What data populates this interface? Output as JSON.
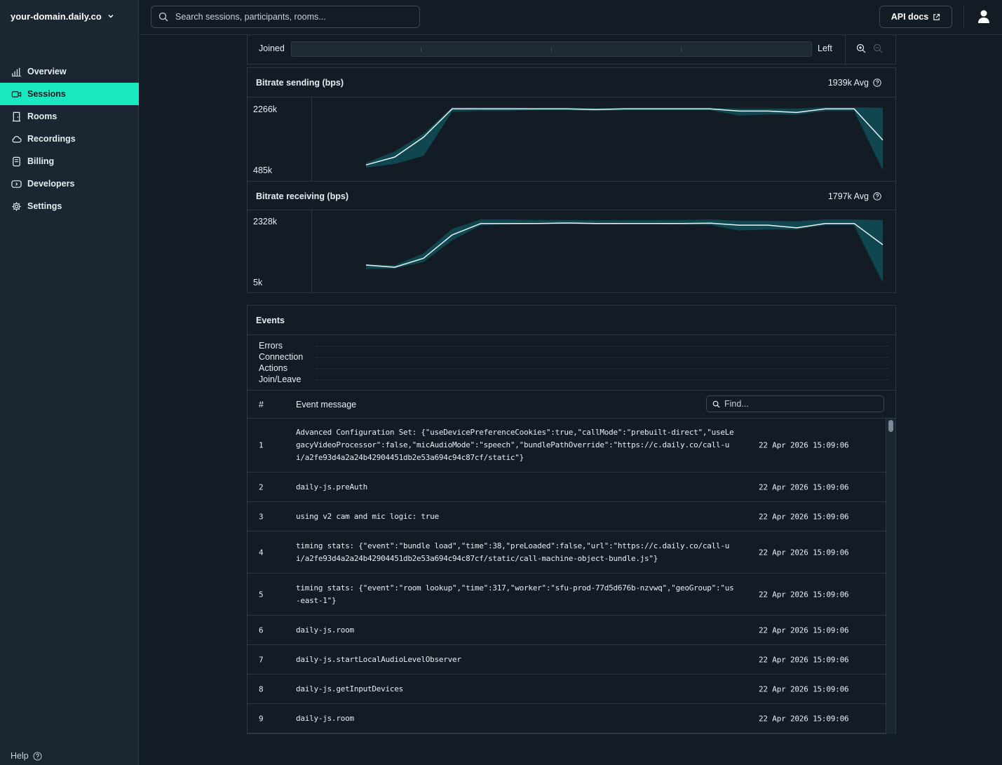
{
  "sidebar": {
    "domain": "your-domain.daily.co",
    "items": [
      {
        "label": "Overview",
        "icon": "bar-chart-icon",
        "active": false
      },
      {
        "label": "Sessions",
        "icon": "video-icon",
        "active": true
      },
      {
        "label": "Rooms",
        "icon": "door-icon",
        "active": false
      },
      {
        "label": "Recordings",
        "icon": "cloud-icon",
        "active": false
      },
      {
        "label": "Billing",
        "icon": "receipt-icon",
        "active": false
      },
      {
        "label": "Developers",
        "icon": "terminal-icon",
        "active": false
      },
      {
        "label": "Settings",
        "icon": "gear-icon",
        "active": false
      }
    ],
    "help": "Help"
  },
  "topbar": {
    "search_placeholder": "Search sessions, participants, rooms...",
    "api_docs": "API docs"
  },
  "timeline": {
    "joined": "Joined",
    "left": "Left"
  },
  "charts": {
    "sending": {
      "title": "Bitrate sending (bps)",
      "avg": "1939k Avg",
      "max": "2266k",
      "min": "485k"
    },
    "receiving": {
      "title": "Bitrate receiving (bps)",
      "avg": "1797k Avg",
      "max": "2328k",
      "min": "5k"
    }
  },
  "chart_data": [
    {
      "type": "area",
      "title": "Bitrate sending (bps)",
      "ylim": [
        485,
        2266
      ],
      "series": [
        {
          "values": [
            640,
            860,
            1420,
            2220,
            2220,
            2220,
            2220,
            2220,
            2200,
            2220,
            2220,
            2220,
            2220,
            2160,
            2160,
            2120,
            2220,
            2220,
            1340
          ]
        }
      ],
      "band_upper": [
        700,
        1020,
        1520,
        2266,
        2266,
        2266,
        2250,
        2250,
        2240,
        2250,
        2250,
        2250,
        2250,
        2230,
        2230,
        2230,
        2266,
        2266,
        2250
      ],
      "band_lower": [
        560,
        670,
        890,
        2140,
        2160,
        2160,
        2180,
        2180,
        2160,
        2180,
        2180,
        2180,
        2180,
        2030,
        2060,
        2060,
        2160,
        2160,
        485
      ]
    },
    {
      "type": "area",
      "title": "Bitrate receiving (bps)",
      "ylim": [
        5,
        2328
      ],
      "series": [
        {
          "values": [
            650,
            570,
            900,
            1760,
            2180,
            2180,
            2180,
            2200,
            2180,
            2180,
            2180,
            2180,
            2190,
            2120,
            2120,
            2020,
            2180,
            2180,
            1400
          ]
        }
      ],
      "band_upper": [
        680,
        640,
        1080,
        1980,
        2328,
        2328,
        2310,
        2310,
        2300,
        2310,
        2310,
        2310,
        2328,
        2280,
        2280,
        2260,
        2328,
        2328,
        2310
      ],
      "band_lower": [
        500,
        520,
        760,
        1560,
        2110,
        2140,
        2160,
        2150,
        2140,
        2150,
        2150,
        2140,
        2120,
        1920,
        1960,
        1960,
        2120,
        2120,
        5
      ]
    }
  ],
  "events": {
    "title": "Events",
    "lanes": [
      "Errors",
      "Connection",
      "Actions",
      "Join/Leave"
    ],
    "col_num": "#",
    "col_msg": "Event message",
    "find_placeholder": "Find...",
    "rows": [
      {
        "num": "1",
        "msg": "Advanced Configuration Set: {\"useDevicePreferenceCookies\":true,\"callMode\":\"prebuilt-direct\",\"useLegacyVideoProcessor\":false,\"micAudioMode\":\"speech\",\"bundlePathOverride\":\"https://c.daily.co/call-ui/a2fe93d4a2a24b42904451db2e53a694c94c87cf/static\"}",
        "time": "22 Apr 2026 15:09:06",
        "h": 77
      },
      {
        "num": "2",
        "msg": "daily-js.preAuth",
        "time": "22 Apr 2026 15:09:06",
        "h": 42
      },
      {
        "num": "3",
        "msg": "using v2 cam and mic logic: true",
        "time": "22 Apr 2026 15:09:06",
        "h": 42
      },
      {
        "num": "4",
        "msg": "timing stats: {\"event\":\"bundle load\",\"time\":38,\"preLoaded\":false,\"url\":\"https://c.daily.co/call-ui/a2fe93d4a2a24b42904451db2e53a694c94c87cf/static/call-machine-object-bundle.js\"}",
        "time": "22 Apr 2026 15:09:06",
        "h": 60
      },
      {
        "num": "5",
        "msg": "timing stats: {\"event\":\"room lookup\",\"time\":317,\"worker\":\"sfu-prod-77d5d676b-nzvwq\",\"geoGroup\":\"us-east-1\"}",
        "time": "22 Apr 2026 15:09:06",
        "h": 60
      },
      {
        "num": "6",
        "msg": "daily-js.room",
        "time": "22 Apr 2026 15:09:06",
        "h": 42
      },
      {
        "num": "7",
        "msg": "daily-js.startLocalAudioLevelObserver",
        "time": "22 Apr 2026 15:09:06",
        "h": 42
      },
      {
        "num": "8",
        "msg": "daily-js.getInputDevices",
        "time": "22 Apr 2026 15:09:06",
        "h": 42
      },
      {
        "num": "9",
        "msg": "daily-js.room",
        "time": "22 Apr 2026 15:09:06",
        "h": 42
      }
    ]
  },
  "colors": {
    "accent": "#1be8c0",
    "chart_line": "#e8f3f5",
    "chart_band": "#0f4650",
    "sidebar_bg": "#1b2632",
    "page_bg": "#131b24"
  }
}
